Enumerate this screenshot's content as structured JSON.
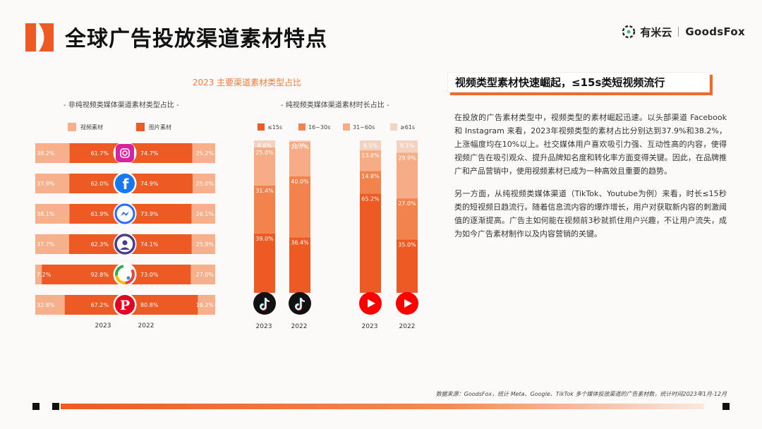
{
  "header": {
    "title": "全球广告投放渠道素材特点",
    "brand_cn": "有米云",
    "brand_en": "GoodsFox"
  },
  "colors": {
    "accent": "#ee5a24",
    "c_video": "#f6b18c",
    "c_image": "#ee5a24",
    "c_le15": "#ee5a24",
    "c_16_30": "#f3834d",
    "c_31_60": "#f6ad86",
    "c_ge61": "#f3d2c1"
  },
  "chart_data": [
    {
      "type": "bar",
      "title": "2023 主要渠道素材类型占比",
      "subtitle": "- 非纯视频类媒体渠道素材类型占比 -",
      "orientation": "horizontal",
      "categories": [
        "instagram-icon",
        "facebook-icon",
        "messenger-icon",
        "audience-network-icon",
        "google-icon",
        "pinterest-icon"
      ],
      "legend": [
        "视频素材",
        "图片素材"
      ],
      "years": [
        "2023",
        "2022"
      ],
      "rows": [
        {
          "icon": "instagram-icon",
          "y2023": {
            "video": 38.2,
            "image": 61.7,
            "video_label": "38.2%",
            "image_label": "61.7%"
          },
          "y2022": {
            "video": 25.2,
            "image": 74.7,
            "video_label": "25.2%",
            "image_label": "74.7%"
          }
        },
        {
          "icon": "facebook-icon",
          "y2023": {
            "video": 37.9,
            "image": 62.0,
            "video_label": "37.9%",
            "image_label": "62.0%"
          },
          "y2022": {
            "video": 25.0,
            "image": 74.9,
            "video_label": "25.0%",
            "image_label": "74.9%"
          }
        },
        {
          "icon": "messenger-icon",
          "y2023": {
            "video": 38.1,
            "image": 61.9,
            "video_label": "38.1%",
            "image_label": "61.9%"
          },
          "y2022": {
            "video": 26.1,
            "image": 73.9,
            "video_label": "26.1%",
            "image_label": "73.9%"
          }
        },
        {
          "icon": "audience-network-icon",
          "y2023": {
            "video": 37.7,
            "image": 62.3,
            "video_label": "37.7%",
            "image_label": "62.3%"
          },
          "y2022": {
            "video": 25.9,
            "image": 74.1,
            "video_label": "25.9%",
            "image_label": "74.1%"
          }
        },
        {
          "icon": "google-icon",
          "y2023": {
            "video": 7.2,
            "image": 92.8,
            "video_label": "7.2%",
            "image_label": "92.8%"
          },
          "y2022": {
            "video": 27.0,
            "image": 73.0,
            "video_label": "27.0%",
            "image_label": "73.0%"
          }
        },
        {
          "icon": "pinterest-icon",
          "y2023": {
            "video": 32.8,
            "image": 67.2,
            "video_label": "32.8%",
            "image_label": "67.2%"
          },
          "y2022": {
            "video": 19.2,
            "image": 80.8,
            "video_label": "19.2%",
            "image_label": "80.8%"
          }
        }
      ]
    },
    {
      "type": "bar",
      "subtitle": "- 纯视频类媒体渠道素材时长占比 -",
      "orientation": "vertical",
      "stacked": true,
      "legend": [
        "≤15s",
        "16~30s",
        "31~60s",
        "≥61s"
      ],
      "columns": [
        {
          "icon": "tiktok-icon",
          "year": "2023",
          "segments": [
            39.0,
            31.4,
            25.0,
            4.6
          ],
          "labels": [
            "39.0%",
            "31.4%",
            "25.0%",
            "4.6%"
          ]
        },
        {
          "icon": "tiktok-icon",
          "year": "2022",
          "segments": [
            36.4,
            40.0,
            22.7,
            0.9
          ],
          "labels": [
            "36.4%",
            "40.0%",
            "22.7%",
            "0.9%"
          ]
        },
        {
          "icon": "youtube-icon",
          "year": "2023",
          "segments": [
            65.2,
            14.8,
            13.6,
            6.5
          ],
          "labels": [
            "65.2%",
            "14.8%",
            "13.6%",
            "6.5%"
          ]
        },
        {
          "icon": "youtube-icon",
          "year": "2022",
          "segments": [
            35.0,
            27.0,
            29.9,
            8.1
          ],
          "labels": [
            "35.0%",
            "27.0%",
            "29.9%",
            "8.1%"
          ]
        }
      ]
    }
  ],
  "right": {
    "heading": "视频类型素材快速崛起，≤15s类短视频流行",
    "para1": "在投放的广告素材类型中，视频类型的素材崛起迅速。以头部渠道 Facebook 和 Instagram 来看，2023年视频类型的素材占比分别达到37.9%和38.2%，上涨幅度均在10%以上。社交媒体用户喜欢吸引力强、互动性高的内容，使得视频广告在吸引观众、提升品牌知名度和转化率方面变得关键。因此，在品牌推广和产品营销中，使用视频素材已成为一种高效且重要的趋势。",
    "para2": "另一方面，从纯视频类媒体渠道（TikTok、Youtube为例）来看，时长≤15秒类的短视频日趋流行。随着信息流内容的爆炸增长，用户对获取新内容的刺激阈值的逐渐提高。广告主如何能在视频前3秒就抓住用户兴趣，不让用户流失，成为如今广告素材制作以及内容营销的关键。"
  },
  "footer": {
    "source": "数据来源：GoodsFox，统计 Meta、Google、TikTok 多个媒体投放渠道的广告素材数，统计时间2023年1月-12月"
  }
}
